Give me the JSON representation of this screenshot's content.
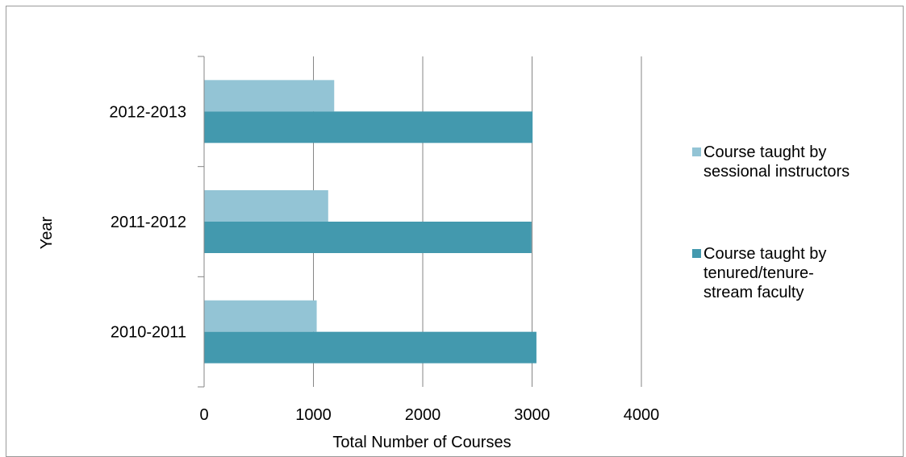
{
  "chart_data": {
    "type": "bar",
    "orientation": "horizontal",
    "categories": [
      "2010-2011",
      "2011-2012",
      "2012-2013"
    ],
    "series": [
      {
        "name": "Course taught by sessional instructors",
        "values": [
          1030,
          1135,
          1190
        ],
        "color": "#93c4d5"
      },
      {
        "name": "Course taught by tenured/tenure-stream faculty",
        "values": [
          3040,
          2995,
          3005
        ],
        "color": "#4399ae"
      }
    ],
    "xlabel": "Total Number of Courses",
    "ylabel": "Year",
    "xlim": [
      0,
      4000
    ],
    "xticks": [
      "0",
      "1000",
      "2000",
      "3000",
      "4000"
    ],
    "grid": "vertical",
    "legend_position": "right"
  },
  "legend": {
    "items": [
      {
        "lines": [
          "Course taught by",
          "sessional instructors"
        ],
        "color": "#93c4d5"
      },
      {
        "lines": [
          "Course taught by",
          "tenured/tenure-",
          "stream faculty"
        ],
        "color": "#4399ae"
      }
    ]
  }
}
